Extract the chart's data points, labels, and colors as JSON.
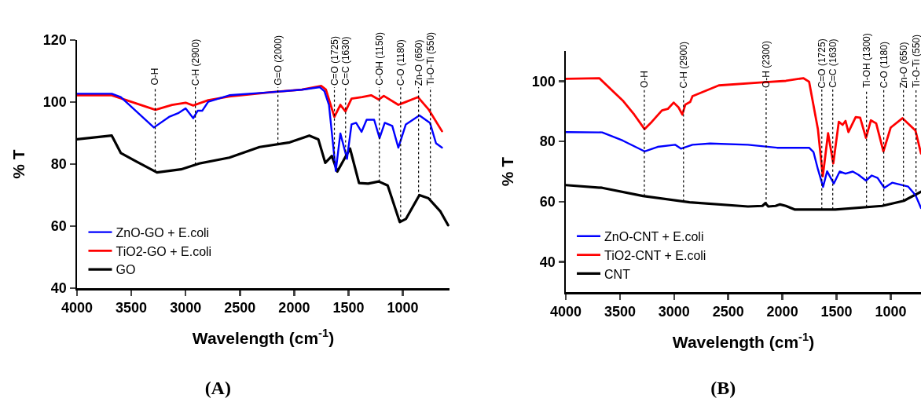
{
  "chart_data": [
    {
      "type": "line",
      "title": "(A)",
      "xlabel": "Wavelength (cm$^{-1}$)",
      "ylabel": "% T",
      "xlim": [
        4000,
        570
      ],
      "xticks": [
        4000,
        3500,
        3000,
        2500,
        2000,
        1500,
        1000
      ],
      "ylim": [
        40,
        120
      ],
      "yticks": [
        40,
        60,
        80,
        100,
        120
      ],
      "grid": false,
      "legend": "bottom left",
      "series": [
        {
          "name": "ZnO-GO + E.coli",
          "color": "#0000ff",
          "x": [
            4000,
            3680,
            3597,
            3292,
            3153,
            3069,
            3000,
            2930,
            2889,
            2847,
            2792,
            2597,
            2208,
            1930,
            1764,
            1722,
            1680,
            1617,
            1575,
            1514,
            1472,
            1430,
            1380,
            1333,
            1264,
            1214,
            1166,
            1097,
            1041,
            972,
            847,
            750,
            694,
            639
          ],
          "values": [
            102.7,
            102.7,
            101.6,
            91.8,
            95.2,
            96.4,
            98,
            94.8,
            97.2,
            97.2,
            100.1,
            102.2,
            103.2,
            104,
            104.8,
            103.5,
            99.1,
            77.8,
            89.9,
            81.7,
            92.8,
            93.3,
            90.4,
            94.3,
            94.3,
            88.4,
            93.3,
            92.3,
            85.3,
            92.8,
            95.7,
            93.3,
            86.7,
            85.3
          ]
        },
        {
          "name": "TiO2-GO + E.coli",
          "color": "#ff0000",
          "x": [
            4000,
            3680,
            3278,
            3125,
            3000,
            2930,
            2792,
            2597,
            2208,
            1930,
            1750,
            1708,
            1630,
            1575,
            1528,
            1472,
            1375,
            1292,
            1222,
            1175,
            1041,
            861,
            764,
            639
          ],
          "values": [
            102.2,
            102.2,
            97.5,
            99.1,
            99.8,
            98.9,
            100.6,
            101.8,
            103.2,
            104,
            105.2,
            104,
            95.2,
            99.1,
            97,
            101.1,
            101.6,
            102.2,
            100.8,
            102,
            99.1,
            101.6,
            97.7,
            90.6
          ]
        },
        {
          "name": "GO",
          "color": "#000000",
          "x": [
            4000,
            3680,
            3597,
            3458,
            3264,
            3042,
            2875,
            2597,
            2319,
            2041,
            1861,
            1778,
            1714,
            1653,
            1603,
            1486,
            1403,
            1319,
            1222,
            1139,
            1028,
            972,
            847,
            764,
            653,
            583
          ],
          "values": [
            88,
            89.2,
            83.6,
            80.9,
            77.3,
            78.3,
            80.2,
            82.1,
            85.5,
            87,
            89.2,
            88,
            80.4,
            82.6,
            77.6,
            85,
            73.9,
            73.7,
            74.4,
            73.1,
            61.3,
            62.3,
            70,
            69,
            64.7,
            60.3
          ]
        }
      ],
      "ref_lines": [
        {
          "axis": "x",
          "value": 3280,
          "label": "O-H",
          "color": "#000000",
          "line_style": "dotted"
        },
        {
          "axis": "x",
          "value": 2910,
          "label": "C-H (2900)",
          "color": "#000000",
          "line_style": "dotted"
        },
        {
          "axis": "x",
          "value": 2150,
          "label": "G=O (2000)",
          "color": "#000000",
          "line_style": "dotted"
        },
        {
          "axis": "x",
          "value": 1630,
          "label": "C=O (1725)",
          "color": "#000000",
          "line_style": "dotted"
        },
        {
          "axis": "x",
          "value": 1527,
          "label": "C=C (1630)",
          "color": "#000000",
          "line_style": "dotted"
        },
        {
          "axis": "x",
          "value": 1216,
          "label": "C-OH (1150)",
          "color": "#000000",
          "line_style": "dotted"
        },
        {
          "axis": "x",
          "value": 1020,
          "label": "C-O (1180)",
          "color": "#000000",
          "line_style": "dotted"
        },
        {
          "axis": "x",
          "value": 855,
          "label": "Zn-O (650)",
          "color": "#000000",
          "line_style": "dotted"
        },
        {
          "axis": "x",
          "value": 746,
          "label": "Ti-O-Ti (550)",
          "color": "#000000",
          "line_style": "dotted"
        }
      ]
    },
    {
      "type": "line",
      "title": "(B)",
      "xlabel": "Wavelength (cm$^{-1}$)",
      "ylabel": "% T",
      "xlim": [
        4000,
        720
      ],
      "xticks": [
        4000,
        3500,
        3000,
        2500,
        2000,
        1500,
        1000
      ],
      "ylim": [
        30,
        110
      ],
      "yticks": [
        40,
        60,
        80,
        100
      ],
      "grid": false,
      "legend": "bottom left",
      "series": [
        {
          "name": "ZnO-CNT + E.coli",
          "color": "#0000ff",
          "x": [
            4000,
            3664,
            3475,
            3273,
            3152,
            2991,
            2937,
            2830,
            2668,
            2318,
            2049,
            1753,
            1713,
            1672,
            1624,
            1587,
            1525,
            1471,
            1417,
            1350,
            1296,
            1228,
            1175,
            1121,
            1059,
            986,
            838,
            771,
            720
          ],
          "values": [
            83.1,
            83,
            80.3,
            76.7,
            78.2,
            78.9,
            77.6,
            78.9,
            79.3,
            78.9,
            77.9,
            77.9,
            76.5,
            70.8,
            64.9,
            70.1,
            66,
            70,
            69.3,
            70,
            68.9,
            67,
            68.7,
            67.9,
            64.6,
            66.3,
            65,
            62.2,
            57.9
          ]
        },
        {
          "name": "TiO2-CNT + E.coli",
          "color": "#ff0000",
          "x": [
            4000,
            3691,
            3475,
            3368,
            3273,
            3206,
            3112,
            3058,
            3004,
            2959,
            2924,
            2897,
            2851,
            2830,
            2587,
            2184,
            1968,
            1807,
            1753,
            1672,
            1627,
            1578,
            1530,
            1479,
            1444,
            1417,
            1390,
            1323,
            1282,
            1228,
            1183,
            1134,
            1067,
            1000,
            892,
            771,
            720
          ],
          "values": [
            100.8,
            101,
            93.6,
            88.9,
            84.1,
            86.5,
            90.3,
            90.8,
            92.9,
            91.3,
            88.9,
            92.2,
            93.1,
            95,
            98.6,
            99.6,
            100.1,
            101,
            99.8,
            84.1,
            68.4,
            82.7,
            72.7,
            86.5,
            85.5,
            86.8,
            83.1,
            88.1,
            87.9,
            81.2,
            87,
            86,
            76.7,
            84.6,
            87.7,
            83.6,
            76
          ]
        },
        {
          "name": "CNT",
          "color": "#000000",
          "x": [
            4000,
            3664,
            3287,
            2857,
            2318,
            2184,
            2157,
            2130,
            2063,
            2022,
            1968,
            1888,
            1511,
            1080,
            878,
            720
          ],
          "values": [
            65.5,
            64.6,
            61.9,
            59.8,
            58.4,
            58.6,
            59.5,
            58.4,
            58.6,
            59.1,
            58.6,
            57.4,
            57.4,
            58.6,
            60.3,
            63.3
          ]
        }
      ],
      "ref_lines": [
        {
          "axis": "x",
          "value": 3275,
          "label": "O-H",
          "color": "#000000",
          "line_style": "dotted"
        },
        {
          "axis": "x",
          "value": 2913,
          "label": "C-H (2900)",
          "color": "#000000",
          "line_style": "dotted"
        },
        {
          "axis": "x",
          "value": 2150,
          "label": "O-H (2300)",
          "color": "#000000",
          "line_style": "dotted"
        },
        {
          "axis": "x",
          "value": 1636,
          "label": "C=O (1725)",
          "color": "#000000",
          "line_style": "dotted"
        },
        {
          "axis": "x",
          "value": 1535,
          "label": "C=C (1630)",
          "color": "#000000",
          "line_style": "dotted"
        },
        {
          "axis": "x",
          "value": 1223,
          "label": "Ti-OH (1300)",
          "color": "#000000",
          "line_style": "dotted"
        },
        {
          "axis": "x",
          "value": 1064,
          "label": "C-O (1180)",
          "color": "#000000",
          "line_style": "dotted"
        },
        {
          "axis": "x",
          "value": 882,
          "label": "Zn-O (650)",
          "color": "#000000",
          "line_style": "dotted"
        },
        {
          "axis": "x",
          "value": 766,
          "label": "Ti-O-Ti (550)",
          "color": "#000000",
          "line_style": "dotted"
        }
      ]
    }
  ]
}
